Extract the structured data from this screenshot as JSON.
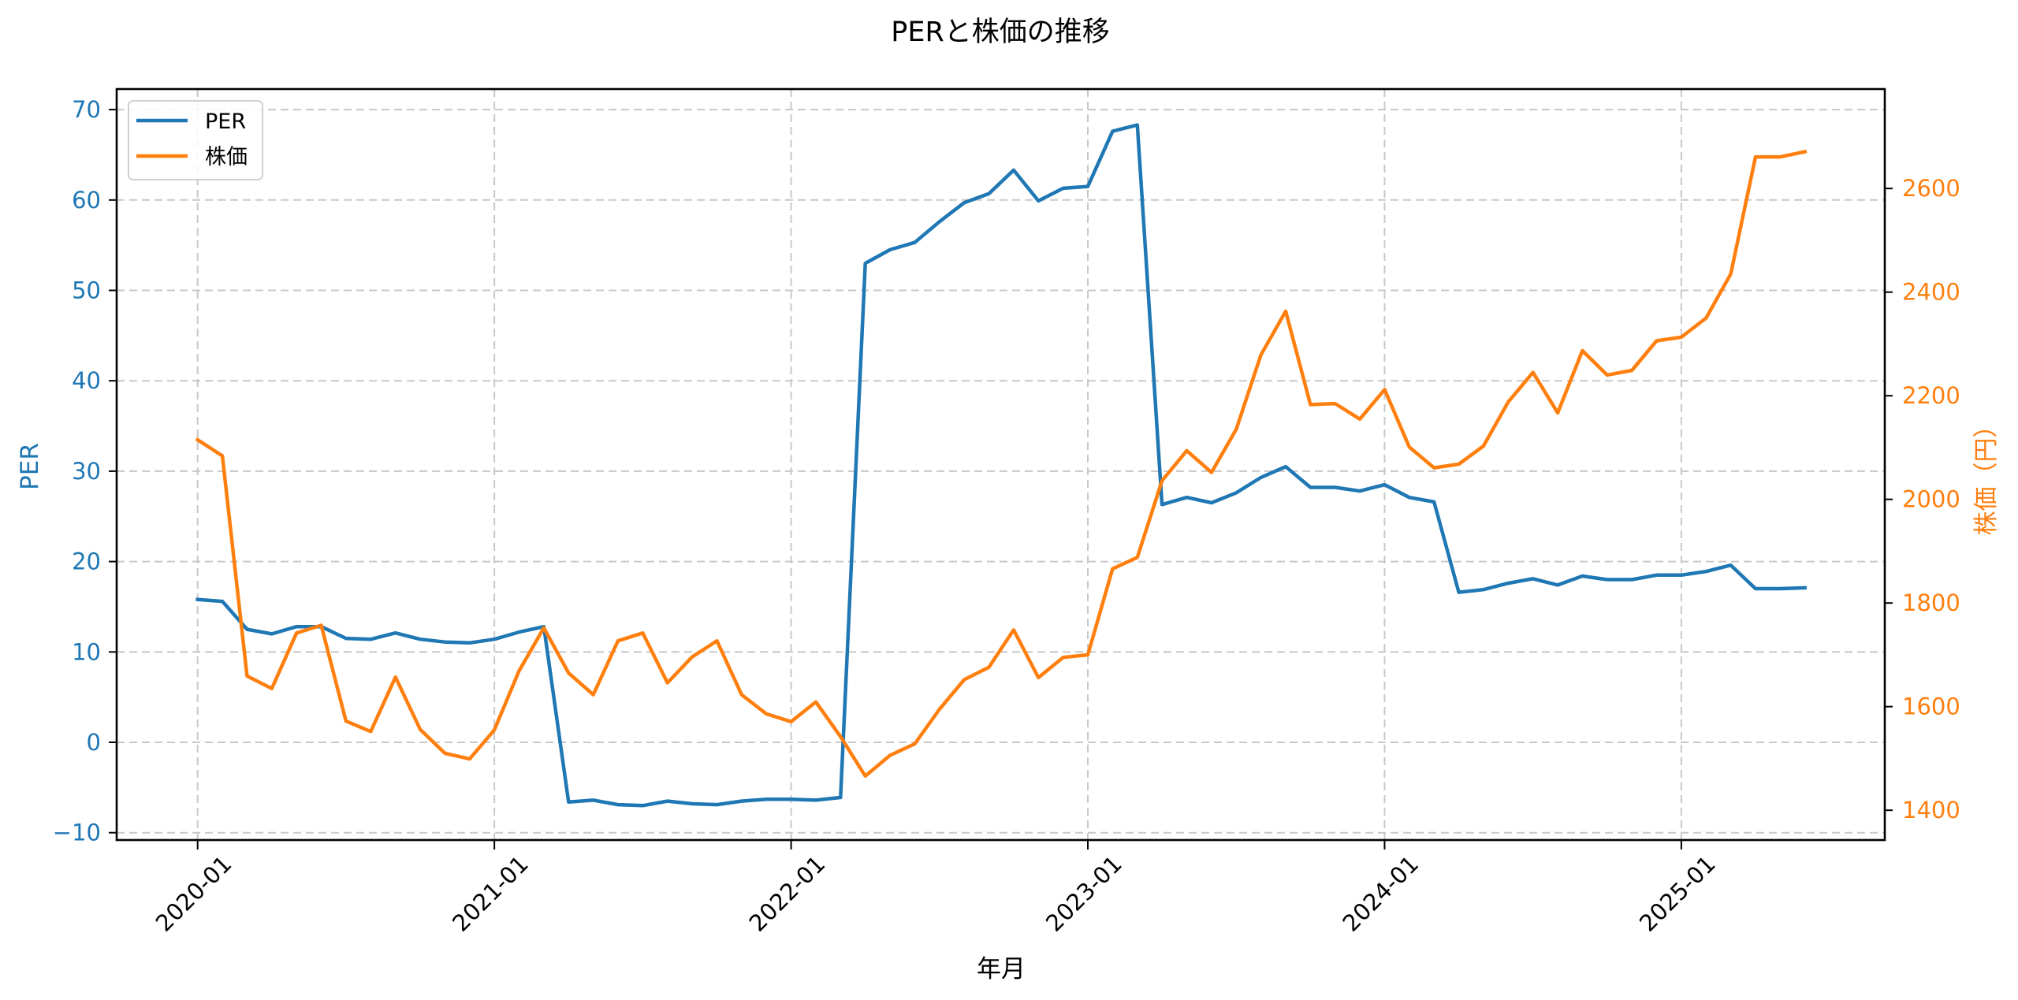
{
  "chart_data": {
    "type": "line",
    "title": "PERと株価の推移",
    "xlabel": "年月",
    "ylabel": "PER",
    "y2label": "株価（円）",
    "x_tick_labels": [
      "2020-01",
      "2021-01",
      "2022-01",
      "2023-01",
      "2024-01",
      "2025-01"
    ],
    "y_ticks": [
      -10,
      0,
      10,
      20,
      30,
      40,
      50,
      60,
      70
    ],
    "y2_ticks": [
      1400,
      1600,
      1800,
      2000,
      2200,
      2400,
      2600
    ],
    "ylim": [
      -11,
      72
    ],
    "y2lim": [
      1350,
      2780
    ],
    "grid": true,
    "legend_position": "upper left",
    "x": [
      "2020-01",
      "2020-02",
      "2020-03",
      "2020-04",
      "2020-05",
      "2020-06",
      "2020-07",
      "2020-08",
      "2020-09",
      "2020-10",
      "2020-11",
      "2020-12",
      "2021-01",
      "2021-02",
      "2021-03",
      "2021-04",
      "2021-05",
      "2021-06",
      "2021-07",
      "2021-08",
      "2021-09",
      "2021-10",
      "2021-11",
      "2021-12",
      "2022-01",
      "2022-02",
      "2022-03",
      "2022-04",
      "2022-05",
      "2022-06",
      "2022-07",
      "2022-08",
      "2022-09",
      "2022-10",
      "2022-11",
      "2022-12",
      "2023-01",
      "2023-02",
      "2023-03",
      "2023-04",
      "2023-05",
      "2023-06",
      "2023-07",
      "2023-08",
      "2023-09",
      "2023-10",
      "2023-11",
      "2023-12",
      "2024-01",
      "2024-02",
      "2024-03",
      "2024-04",
      "2024-05",
      "2024-06",
      "2024-07",
      "2024-08",
      "2024-09",
      "2024-10",
      "2024-11",
      "2024-12",
      "2025-01",
      "2025-02",
      "2025-03",
      "2025-04",
      "2025-05",
      "2025-06"
    ],
    "series": [
      {
        "name": "PER",
        "axis": "left",
        "color": "#1f77b4",
        "values": [
          15.8,
          15.6,
          12.5,
          12.0,
          12.8,
          12.8,
          11.5,
          11.4,
          12.1,
          11.4,
          11.1,
          11.0,
          11.4,
          12.2,
          12.8,
          -6.6,
          -6.4,
          -6.9,
          -7.0,
          -6.5,
          -6.8,
          -6.9,
          -6.5,
          -6.3,
          -6.3,
          -6.4,
          -6.1,
          53.0,
          54.5,
          55.3,
          57.6,
          59.7,
          60.7,
          63.3,
          59.9,
          61.3,
          61.5,
          67.6,
          68.3,
          26.3,
          27.1,
          26.5,
          27.6,
          29.3,
          30.5,
          28.2,
          28.2,
          27.8,
          28.5,
          27.1,
          26.6,
          16.6,
          16.9,
          17.6,
          18.1,
          17.4,
          18.4,
          18.0,
          18.0,
          18.5,
          18.5,
          18.9,
          19.6,
          17.0,
          17.0,
          17.1
        ]
      },
      {
        "name": "株価",
        "axis": "right",
        "color": "#ff7f0e",
        "values": [
          2115,
          2084,
          1659,
          1635,
          1742,
          1757,
          1572,
          1552,
          1657,
          1556,
          1510,
          1499,
          1555,
          1669,
          1752,
          1665,
          1623,
          1727,
          1742,
          1646,
          1696,
          1727,
          1623,
          1586,
          1571,
          1609,
          1542,
          1466,
          1506,
          1528,
          1595,
          1652,
          1676,
          1748,
          1656,
          1695,
          1700,
          1866,
          1888,
          2036,
          2094,
          2052,
          2135,
          2279,
          2363,
          2183,
          2185,
          2155,
          2212,
          2101,
          2061,
          2068,
          2103,
          2188,
          2245,
          2167,
          2287,
          2240,
          2249,
          2306,
          2313,
          2350,
          2435,
          2661,
          2661,
          2671
        ]
      }
    ]
  },
  "colors": {
    "per": "#1f77b4",
    "price": "#ff7f0e",
    "grid": "#c8c8c8",
    "axis": "#000000"
  },
  "legend": {
    "items": [
      {
        "label": "PER",
        "color": "#1f77b4"
      },
      {
        "label": "株価",
        "color": "#ff7f0e"
      }
    ]
  }
}
